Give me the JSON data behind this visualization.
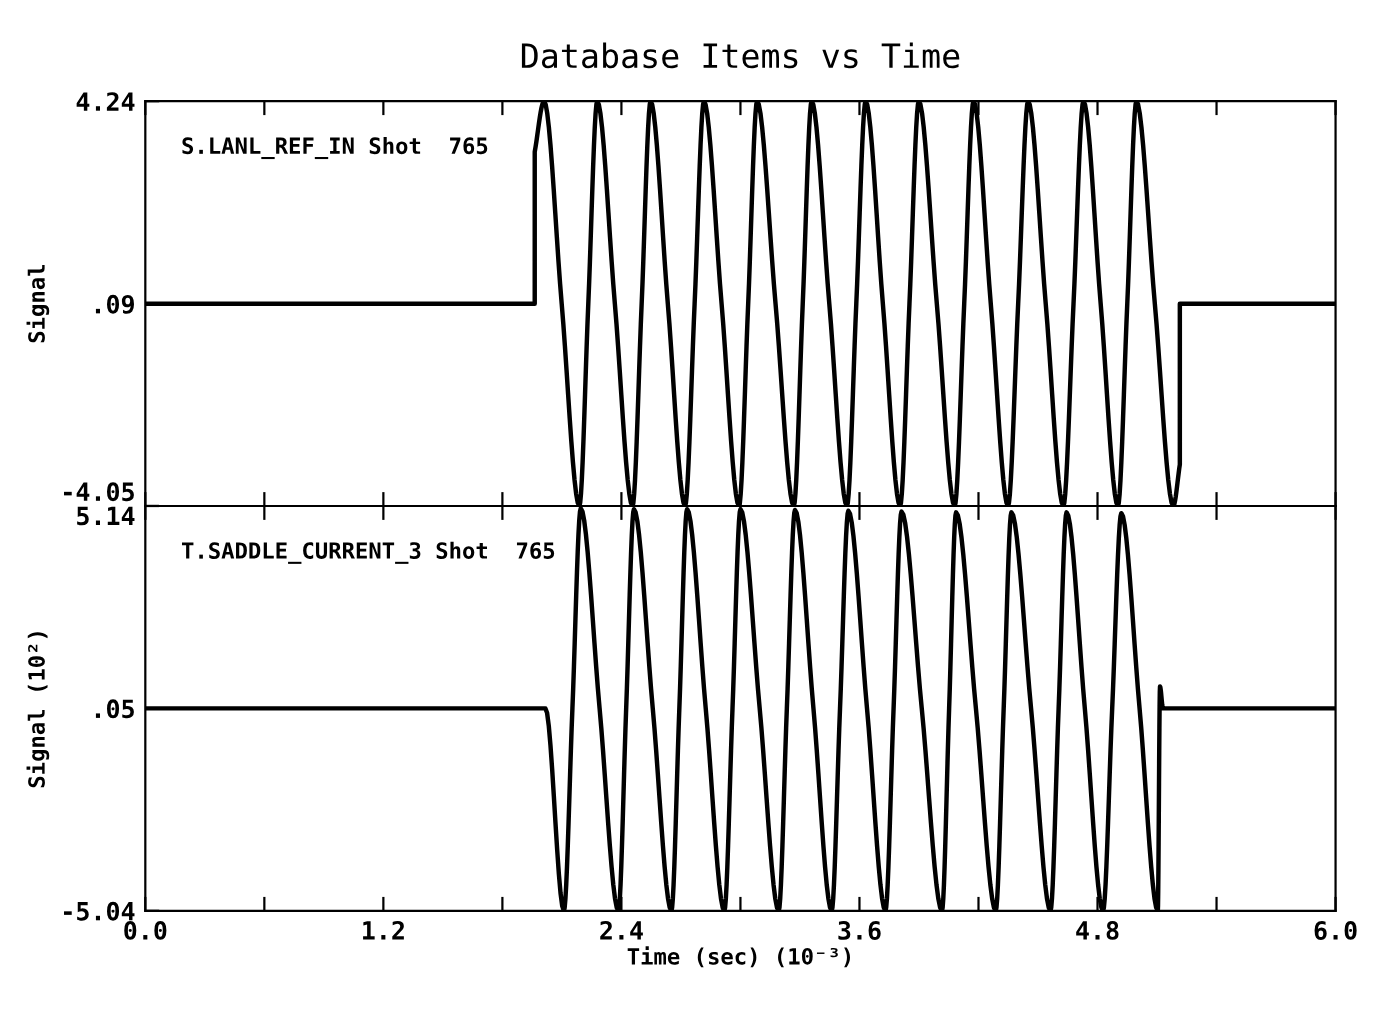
{
  "chart_data": [
    {
      "type": "line",
      "title": "Database Items vs Time",
      "ylabel": "Signal",
      "annotations": [
        "S.LANL_REF_IN Shot  765"
      ],
      "tick_labels": "y",
      "grid": false,
      "legend": false,
      "xlim": [
        0.0,
        6.0
      ],
      "xticks": [
        {
          "value": 0.0,
          "label": null
        },
        {
          "value": 0.6,
          "label": null
        },
        {
          "value": 1.2,
          "label": null
        },
        {
          "value": 1.8,
          "label": null
        },
        {
          "value": 2.4,
          "label": null
        },
        {
          "value": 3.0,
          "label": null
        },
        {
          "value": 3.6,
          "label": null
        },
        {
          "value": 4.2,
          "label": null
        },
        {
          "value": 4.8,
          "label": null
        },
        {
          "value": 5.4,
          "label": null
        },
        {
          "value": 6.0,
          "label": null
        }
      ],
      "ylim": [
        -4.05,
        4.24
      ],
      "yticks": [
        {
          "value": -4.05,
          "label": "-4.05"
        },
        {
          "value": 0.09,
          "label": ".09"
        },
        {
          "value": 4.24,
          "label": "4.24"
        }
      ],
      "series": [
        {
          "color": "#000000",
          "x": [
            0,
            1.963,
            1.963,
            2.01,
            2.099,
            2.188,
            2.233,
            2.278,
            2.367,
            2.456,
            2.502,
            2.547,
            2.634,
            2.721,
            2.769,
            2.816,
            2.905,
            2.993,
            3.039,
            3.084,
            3.177,
            3.269,
            3.314,
            3.359,
            3.448,
            3.537,
            3.584,
            3.631,
            3.718,
            3.805,
            3.852,
            3.899,
            3.99,
            4.08,
            4.128,
            4.175,
            4.262,
            4.349,
            4.4,
            4.45,
            4.539,
            4.628,
            4.679,
            4.729,
            4.816,
            4.903,
            4.95,
            4.996,
            5.089,
            5.182,
            5.215,
            5.215,
            6.0
          ],
          "values": [
            0.09,
            0.09,
            3.2,
            4.24,
            0.09,
            -4.05,
            0.09,
            4.24,
            0.09,
            -4.05,
            0.09,
            4.24,
            0.09,
            -4.05,
            0.09,
            4.24,
            0.09,
            -4.05,
            0.09,
            4.24,
            0.09,
            -4.05,
            0.09,
            4.24,
            0.09,
            -4.05,
            0.09,
            4.24,
            0.09,
            -4.05,
            0.09,
            4.24,
            0.09,
            -4.05,
            0.09,
            4.24,
            0.09,
            -4.05,
            0.09,
            4.24,
            0.09,
            -4.05,
            0.09,
            4.24,
            0.09,
            -4.05,
            0.09,
            4.24,
            0.09,
            -4.05,
            -3.2,
            0.09,
            0.09
          ]
        }
      ]
    },
    {
      "type": "line",
      "ylabel": "Signal (10²)",
      "xlabel": "Time (sec) (10⁻³)",
      "annotations": [
        "T.SADDLE_CURRENT_3 Shot  765"
      ],
      "grid": false,
      "legend": false,
      "xlim": [
        0.0,
        6.0
      ],
      "xticks": [
        {
          "value": 0.0,
          "label": "0.0"
        },
        {
          "value": 0.6,
          "label": null
        },
        {
          "value": 1.2,
          "label": "1.2"
        },
        {
          "value": 1.8,
          "label": null
        },
        {
          "value": 2.4,
          "label": "2.4"
        },
        {
          "value": 3.0,
          "label": null
        },
        {
          "value": 3.6,
          "label": "3.6"
        },
        {
          "value": 4.2,
          "label": null
        },
        {
          "value": 4.8,
          "label": "4.8"
        },
        {
          "value": 5.4,
          "label": null
        },
        {
          "value": 6.0,
          "label": "6.0"
        }
      ],
      "ylim": [
        -5.04,
        5.14
      ],
      "yticks": [
        {
          "value": -5.04,
          "label": "-5.04"
        },
        {
          "value": 0.05,
          "label": ".05"
        },
        {
          "value": 5.14,
          "label": "5.14"
        }
      ],
      "series": [
        {
          "color": "#000000",
          "x": [
            0,
            2.017,
            2.11,
            2.153,
            2.195,
            2.29,
            2.385,
            2.424,
            2.463,
            2.558,
            2.652,
            2.692,
            2.731,
            2.825,
            2.919,
            2.96,
            3.0,
            3.097,
            3.193,
            3.234,
            3.275,
            3.368,
            3.46,
            3.502,
            3.544,
            3.638,
            3.731,
            3.772,
            3.812,
            3.914,
            4.016,
            4.052,
            4.087,
            4.187,
            4.287,
            4.327,
            4.366,
            4.465,
            4.563,
            4.604,
            4.644,
            4.736,
            4.828,
            4.874,
            4.92,
            5.012,
            5.104,
            5.115,
            5.13,
            6.0
          ],
          "values": [
            0.05,
            0.05,
            -5.04,
            0.05,
            5.08,
            0.05,
            -5.04,
            0.05,
            5.06,
            0.05,
            -5.04,
            0.05,
            5.06,
            0.05,
            -5.04,
            0.05,
            5.06,
            0.05,
            -5.04,
            0.05,
            5.04,
            0.05,
            -5.04,
            0.05,
            5.02,
            0.05,
            -5.04,
            0.05,
            5.0,
            0.05,
            -5.04,
            0.05,
            4.98,
            0.05,
            -5.04,
            0.05,
            4.98,
            0.05,
            -5.04,
            0.05,
            4.98,
            0.05,
            -5.04,
            0.05,
            4.96,
            0.05,
            -5.04,
            0.6,
            0.05,
            0.05
          ]
        }
      ]
    }
  ]
}
